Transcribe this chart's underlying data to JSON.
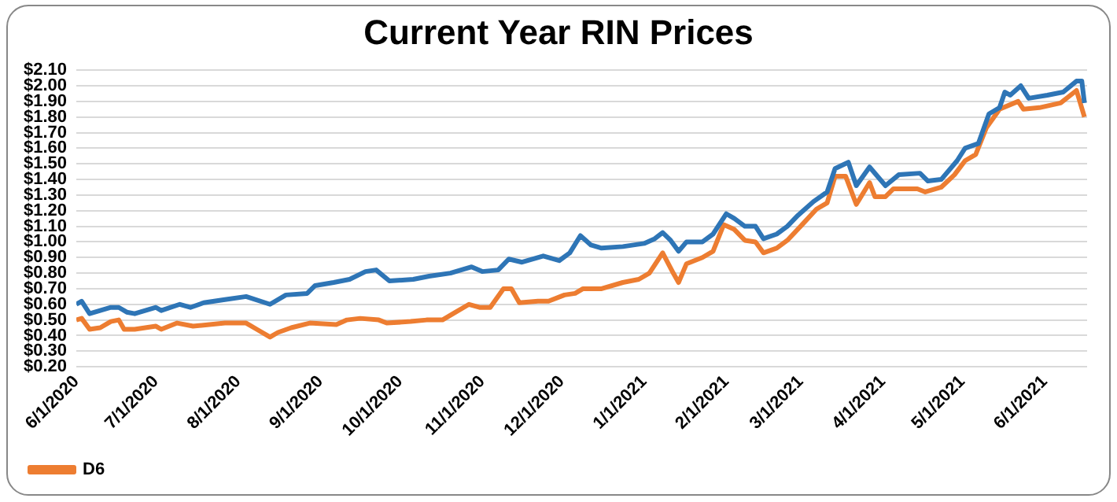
{
  "chart_data": {
    "type": "line",
    "title": "Current Year RIN Prices",
    "xlim": [
      "2020-06-01",
      "2021-06-17"
    ],
    "xticks": [
      {
        "value": "2020-06-01",
        "label": "6/1/2020"
      },
      {
        "value": "2020-07-01",
        "label": "7/1/2020"
      },
      {
        "value": "2020-08-01",
        "label": "8/1/2020"
      },
      {
        "value": "2020-09-01",
        "label": "9/1/2020"
      },
      {
        "value": "2020-10-01",
        "label": "10/1/2020"
      },
      {
        "value": "2020-11-01",
        "label": "11/1/2020"
      },
      {
        "value": "2020-12-01",
        "label": "12/1/2020"
      },
      {
        "value": "2021-01-01",
        "label": "1/1/2021"
      },
      {
        "value": "2021-02-01",
        "label": "2/1/2021"
      },
      {
        "value": "2021-03-01",
        "label": "3/1/2021"
      },
      {
        "value": "2021-04-01",
        "label": "4/1/2021"
      },
      {
        "value": "2021-05-01",
        "label": "5/1/2021"
      },
      {
        "value": "2021-06-01",
        "label": "6/1/2021"
      }
    ],
    "ylim": [
      0.2,
      2.1
    ],
    "yticks": [
      {
        "value": 0.2,
        "label": "$0.20"
      },
      {
        "value": 0.3,
        "label": "$0.30"
      },
      {
        "value": 0.4,
        "label": "$0.40"
      },
      {
        "value": 0.5,
        "label": "$0.50"
      },
      {
        "value": 0.6,
        "label": "$0.60"
      },
      {
        "value": 0.7,
        "label": "$0.70"
      },
      {
        "value": 0.8,
        "label": "$0.80"
      },
      {
        "value": 0.9,
        "label": "$0.90"
      },
      {
        "value": 1.0,
        "label": "$1.00"
      },
      {
        "value": 1.1,
        "label": "$1.10"
      },
      {
        "value": 1.2,
        "label": "$1.20"
      },
      {
        "value": 1.3,
        "label": "$1.30"
      },
      {
        "value": 1.4,
        "label": "$1.40"
      },
      {
        "value": 1.5,
        "label": "$1.50"
      },
      {
        "value": 1.6,
        "label": "$1.60"
      },
      {
        "value": 1.7,
        "label": "$1.70"
      },
      {
        "value": 1.8,
        "label": "$1.80"
      },
      {
        "value": 1.9,
        "label": "$1.90"
      },
      {
        "value": 2.0,
        "label": "$2.00"
      },
      {
        "value": 2.1,
        "label": "$2.10"
      }
    ],
    "grid": "y",
    "legend": "bottom left",
    "line_style": "solid",
    "series": [
      {
        "color": "#2e75b6",
        "x": [
          "2020-06-01",
          "2020-06-03",
          "2020-06-06",
          "2020-06-10",
          "2020-06-14",
          "2020-06-17",
          "2020-06-20",
          "2020-06-23",
          "2020-07-01",
          "2020-07-03",
          "2020-07-10",
          "2020-07-14",
          "2020-07-19",
          "2020-07-27",
          "2020-08-04",
          "2020-08-13",
          "2020-08-19",
          "2020-08-27",
          "2020-08-30",
          "2020-09-06",
          "2020-09-12",
          "2020-09-18",
          "2020-09-22",
          "2020-09-27",
          "2020-10-06",
          "2020-10-12",
          "2020-10-20",
          "2020-10-28",
          "2020-11-01",
          "2020-11-07",
          "2020-11-11",
          "2020-11-16",
          "2020-11-24",
          "2020-11-30",
          "2020-12-04",
          "2020-12-08",
          "2020-12-12",
          "2020-12-16",
          "2020-12-24",
          "2021-01-01",
          "2021-01-05",
          "2021-01-08",
          "2021-01-11",
          "2021-01-14",
          "2021-01-17",
          "2021-01-23",
          "2021-01-27",
          "2021-02-01",
          "2021-02-04",
          "2021-02-08",
          "2021-02-12",
          "2021-02-15",
          "2021-02-20",
          "2021-02-24",
          "2021-02-28",
          "2021-03-06",
          "2021-03-11",
          "2021-03-14",
          "2021-03-19",
          "2021-03-22",
          "2021-03-27",
          "2021-04-02",
          "2021-04-07",
          "2021-04-15",
          "2021-04-18",
          "2021-04-23",
          "2021-04-29",
          "2021-05-02",
          "2021-05-07",
          "2021-05-11",
          "2021-05-15",
          "2021-05-17",
          "2021-05-19",
          "2021-05-23",
          "2021-05-26",
          "2021-06-02",
          "2021-06-08",
          "2021-06-13",
          "2021-06-15",
          "2021-06-16"
        ],
        "values": [
          0.6,
          0.62,
          0.54,
          0.56,
          0.58,
          0.58,
          0.55,
          0.54,
          0.58,
          0.56,
          0.6,
          0.58,
          0.61,
          0.63,
          0.65,
          0.6,
          0.66,
          0.67,
          0.72,
          0.74,
          0.76,
          0.81,
          0.82,
          0.75,
          0.76,
          0.78,
          0.8,
          0.84,
          0.81,
          0.82,
          0.89,
          0.87,
          0.91,
          0.88,
          0.93,
          1.04,
          0.98,
          0.96,
          0.97,
          0.99,
          1.02,
          1.06,
          1.01,
          0.94,
          1.0,
          1.0,
          1.05,
          1.18,
          1.15,
          1.1,
          1.1,
          1.02,
          1.05,
          1.1,
          1.17,
          1.26,
          1.32,
          1.47,
          1.51,
          1.36,
          1.48,
          1.36,
          1.43,
          1.44,
          1.39,
          1.4,
          1.52,
          1.6,
          1.63,
          1.82,
          1.86,
          1.96,
          1.94,
          2.0,
          1.92,
          1.94,
          1.96,
          2.03,
          2.03,
          1.89
        ]
      },
      {
        "name": "D6",
        "color": "#ed7d31",
        "x": [
          "2020-06-01",
          "2020-06-03",
          "2020-06-06",
          "2020-06-10",
          "2020-06-14",
          "2020-06-17",
          "2020-06-19",
          "2020-06-23",
          "2020-07-01",
          "2020-07-03",
          "2020-07-09",
          "2020-07-15",
          "2020-07-27",
          "2020-08-04",
          "2020-08-08",
          "2020-08-13",
          "2020-08-16",
          "2020-08-21",
          "2020-08-28",
          "2020-09-07",
          "2020-09-11",
          "2020-09-16",
          "2020-09-23",
          "2020-09-26",
          "2020-10-05",
          "2020-10-11",
          "2020-10-17",
          "2020-10-21",
          "2020-10-27",
          "2020-10-31",
          "2020-11-04",
          "2020-11-09",
          "2020-11-12",
          "2020-11-15",
          "2020-11-22",
          "2020-11-26",
          "2020-12-02",
          "2020-12-06",
          "2020-12-09",
          "2020-12-16",
          "2020-12-24",
          "2020-12-30",
          "2021-01-03",
          "2021-01-08",
          "2021-01-12",
          "2021-01-14",
          "2021-01-17",
          "2021-01-23",
          "2021-01-27",
          "2021-01-31",
          "2021-02-04",
          "2021-02-08",
          "2021-02-12",
          "2021-02-15",
          "2021-02-20",
          "2021-02-24",
          "2021-03-01",
          "2021-03-07",
          "2021-03-11",
          "2021-03-14",
          "2021-03-18",
          "2021-03-22",
          "2021-03-27",
          "2021-03-29",
          "2021-04-02",
          "2021-04-05",
          "2021-04-14",
          "2021-04-17",
          "2021-04-23",
          "2021-04-28",
          "2021-05-02",
          "2021-05-06",
          "2021-05-10",
          "2021-05-15",
          "2021-05-22",
          "2021-05-24",
          "2021-05-30",
          "2021-06-07",
          "2021-06-13",
          "2021-06-16"
        ],
        "values": [
          0.5,
          0.51,
          0.44,
          0.45,
          0.49,
          0.5,
          0.44,
          0.44,
          0.46,
          0.44,
          0.48,
          0.46,
          0.48,
          0.48,
          0.44,
          0.39,
          0.42,
          0.45,
          0.48,
          0.47,
          0.5,
          0.51,
          0.5,
          0.48,
          0.49,
          0.5,
          0.5,
          0.54,
          0.6,
          0.58,
          0.58,
          0.7,
          0.7,
          0.61,
          0.62,
          0.62,
          0.66,
          0.67,
          0.7,
          0.7,
          0.74,
          0.76,
          0.8,
          0.93,
          0.8,
          0.74,
          0.86,
          0.9,
          0.94,
          1.11,
          1.08,
          1.01,
          1.0,
          0.93,
          0.96,
          1.01,
          1.1,
          1.21,
          1.25,
          1.42,
          1.42,
          1.24,
          1.38,
          1.29,
          1.29,
          1.34,
          1.34,
          1.32,
          1.35,
          1.43,
          1.52,
          1.56,
          1.73,
          1.85,
          1.9,
          1.85,
          1.86,
          1.89,
          1.97,
          1.8
        ]
      }
    ]
  }
}
